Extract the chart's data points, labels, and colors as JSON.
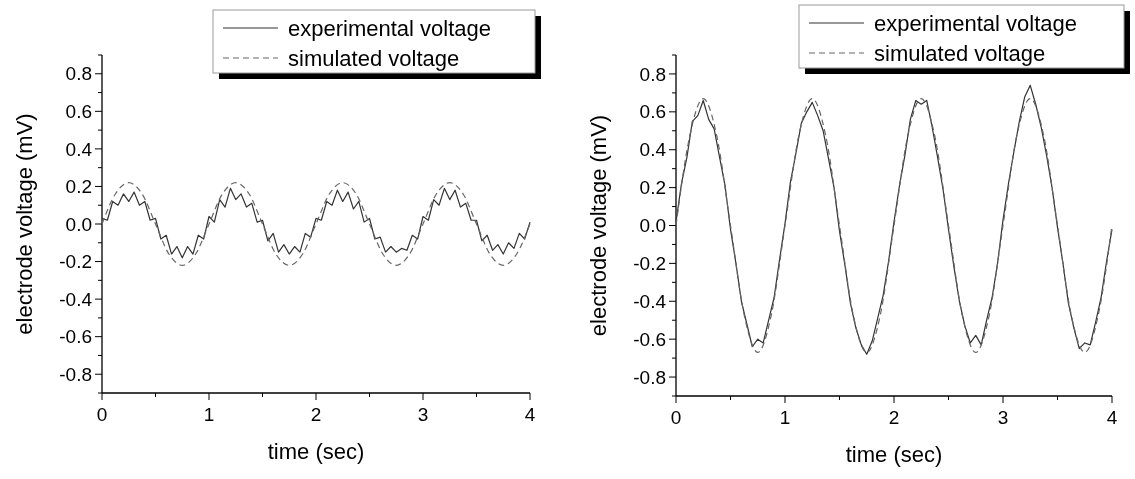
{
  "chart_data": [
    {
      "type": "line",
      "xlabel": "time (sec)",
      "ylabel": "electrode voltage (mV)",
      "xlim": [
        0,
        4
      ],
      "ylim": [
        -0.9,
        0.9
      ],
      "xticks": [
        0,
        {
          "value": 0.5,
          "label": null
        },
        1,
        {
          "value": 1.5,
          "label": null
        },
        2,
        {
          "value": 2.5,
          "label": null
        },
        3,
        {
          "value": 3.5,
          "label": null
        },
        4
      ],
      "yticks": [
        {
          "value": -0.9,
          "label": null
        },
        -0.8,
        {
          "value": -0.7,
          "label": null
        },
        -0.6,
        {
          "value": -0.5,
          "label": null
        },
        -0.4,
        {
          "value": -0.3,
          "label": null
        },
        -0.2,
        {
          "value": -0.1,
          "label": null
        },
        {
          "value": 0,
          "label": "0.0"
        },
        {
          "value": 0.1,
          "label": null
        },
        0.2,
        {
          "value": 0.3,
          "label": null
        },
        0.4,
        {
          "value": 0.5,
          "label": null
        },
        0.6,
        {
          "value": 0.7,
          "label": null
        },
        0.8,
        {
          "value": 0.9,
          "label": null
        }
      ],
      "legend": "top right",
      "grid": false,
      "series": [
        {
          "name": "experimental voltage",
          "color": "#333333",
          "line_style": "solid",
          "x": [
            0,
            0.05,
            0.1,
            0.15,
            0.2,
            0.25,
            0.3,
            0.35,
            0.4,
            0.45,
            0.5,
            0.55,
            0.6,
            0.65,
            0.7,
            0.75,
            0.8,
            0.85,
            0.9,
            0.95,
            1,
            1.05,
            1.1,
            1.15,
            1.2,
            1.25,
            1.3,
            1.35,
            1.4,
            1.45,
            1.5,
            1.55,
            1.6,
            1.65,
            1.7,
            1.75,
            1.8,
            1.85,
            1.9,
            1.95,
            2,
            2.05,
            2.1,
            2.15,
            2.2,
            2.25,
            2.3,
            2.35,
            2.4,
            2.45,
            2.5,
            2.55,
            2.6,
            2.65,
            2.7,
            2.75,
            2.8,
            2.85,
            2.9,
            2.95,
            3,
            3.05,
            3.1,
            3.15,
            3.2,
            3.25,
            3.3,
            3.35,
            3.4,
            3.45,
            3.5,
            3.55,
            3.6,
            3.65,
            3.7,
            3.75,
            3.8,
            3.85,
            3.9,
            3.95,
            4
          ],
          "values": [
            0.03,
            0.02,
            0.12,
            0.1,
            0.16,
            0.12,
            0.17,
            0.1,
            0.12,
            0.02,
            0.03,
            -0.08,
            -0.06,
            -0.16,
            -0.12,
            -0.18,
            -0.12,
            -0.16,
            -0.06,
            -0.08,
            0.04,
            0.01,
            0.13,
            0.09,
            0.19,
            0.13,
            0.16,
            0.09,
            0.11,
            0.01,
            0.02,
            -0.09,
            -0.05,
            -0.15,
            -0.11,
            -0.16,
            -0.12,
            -0.15,
            -0.05,
            -0.07,
            0.03,
            0.02,
            0.12,
            0.1,
            0.18,
            0.12,
            0.17,
            0.08,
            0.12,
            0.01,
            0.03,
            -0.08,
            -0.07,
            -0.15,
            -0.12,
            -0.15,
            -0.13,
            -0.14,
            -0.06,
            -0.08,
            0.04,
            0.02,
            0.13,
            0.1,
            0.19,
            0.13,
            0.18,
            0.09,
            0.11,
            0.02,
            0.02,
            -0.09,
            -0.06,
            -0.14,
            -0.11,
            -0.16,
            -0.1,
            -0.13,
            -0.05,
            -0.08,
            0.01
          ]
        },
        {
          "name": "simulated voltage",
          "color": "#666666",
          "line_style": "dashed",
          "x": [
            0,
            0.125,
            0.25,
            0.375,
            0.5,
            0.625,
            0.75,
            0.875,
            1,
            1.125,
            1.25,
            1.375,
            1.5,
            1.625,
            1.75,
            1.875,
            2,
            2.125,
            2.25,
            2.375,
            2.5,
            2.625,
            2.75,
            2.875,
            3,
            3.125,
            3.25,
            3.375,
            3.5,
            3.625,
            3.75,
            3.875,
            4
          ],
          "values": [
            0,
            0.16,
            0.22,
            0.16,
            0,
            -0.16,
            -0.22,
            -0.16,
            0,
            0.16,
            0.22,
            0.16,
            0,
            -0.16,
            -0.22,
            -0.16,
            0,
            0.16,
            0.22,
            0.16,
            0,
            -0.16,
            -0.22,
            -0.16,
            0,
            0.16,
            0.22,
            0.16,
            0,
            -0.16,
            -0.22,
            -0.16,
            0
          ]
        }
      ]
    },
    {
      "type": "line",
      "xlabel": "time (sec)",
      "ylabel": "electrode voltage (mV)",
      "xlim": [
        0,
        4
      ],
      "ylim": [
        -0.9,
        0.9
      ],
      "xticks": [
        0,
        {
          "value": 0.5,
          "label": null
        },
        1,
        {
          "value": 1.5,
          "label": null
        },
        2,
        {
          "value": 2.5,
          "label": null
        },
        3,
        {
          "value": 3.5,
          "label": null
        },
        4
      ],
      "yticks": [
        {
          "value": -0.9,
          "label": null
        },
        -0.8,
        {
          "value": -0.7,
          "label": null
        },
        -0.6,
        {
          "value": -0.5,
          "label": null
        },
        -0.4,
        {
          "value": -0.3,
          "label": null
        },
        -0.2,
        {
          "value": -0.1,
          "label": null
        },
        {
          "value": 0,
          "label": "0.0"
        },
        {
          "value": 0.1,
          "label": null
        },
        0.2,
        {
          "value": 0.3,
          "label": null
        },
        0.4,
        {
          "value": 0.5,
          "label": null
        },
        0.6,
        {
          "value": 0.7,
          "label": null
        },
        0.8,
        {
          "value": 0.9,
          "label": null
        }
      ],
      "legend": "top right",
      "grid": false,
      "series": [
        {
          "name": "experimental voltage",
          "color": "#333333",
          "line_style": "solid",
          "x": [
            0,
            0.05,
            0.1,
            0.15,
            0.2,
            0.25,
            0.3,
            0.35,
            0.4,
            0.45,
            0.5,
            0.55,
            0.6,
            0.65,
            0.7,
            0.75,
            0.8,
            0.85,
            0.9,
            0.95,
            1,
            1.05,
            1.1,
            1.15,
            1.2,
            1.25,
            1.3,
            1.35,
            1.4,
            1.45,
            1.5,
            1.55,
            1.6,
            1.65,
            1.7,
            1.75,
            1.8,
            1.85,
            1.9,
            1.95,
            2,
            2.05,
            2.1,
            2.15,
            2.2,
            2.25,
            2.3,
            2.35,
            2.4,
            2.45,
            2.5,
            2.55,
            2.6,
            2.65,
            2.7,
            2.75,
            2.8,
            2.85,
            2.9,
            2.95,
            3,
            3.05,
            3.1,
            3.15,
            3.2,
            3.25,
            3.3,
            3.35,
            3.4,
            3.45,
            3.5,
            3.55,
            3.6,
            3.65,
            3.7,
            3.75,
            3.8,
            3.85,
            3.9,
            3.95,
            4
          ],
          "values": [
            0.02,
            0.22,
            0.36,
            0.55,
            0.58,
            0.66,
            0.56,
            0.51,
            0.36,
            0.21,
            -0.02,
            -0.2,
            -0.4,
            -0.52,
            -0.64,
            -0.6,
            -0.62,
            -0.5,
            -0.38,
            -0.18,
            0.01,
            0.23,
            0.38,
            0.54,
            0.6,
            0.65,
            0.58,
            0.5,
            0.35,
            0.2,
            -0.03,
            -0.21,
            -0.41,
            -0.54,
            -0.63,
            -0.68,
            -0.61,
            -0.49,
            -0.37,
            -0.19,
            0.02,
            0.21,
            0.37,
            0.56,
            0.66,
            0.64,
            0.66,
            0.52,
            0.36,
            0.19,
            -0.02,
            -0.22,
            -0.4,
            -0.53,
            -0.62,
            -0.58,
            -0.63,
            -0.5,
            -0.38,
            -0.2,
            0.03,
            0.22,
            0.39,
            0.55,
            0.68,
            0.74,
            0.64,
            0.52,
            0.37,
            0.2,
            -0.01,
            -0.2,
            -0.41,
            -0.54,
            -0.65,
            -0.62,
            -0.63,
            -0.51,
            -0.38,
            -0.19,
            -0.02
          ]
        },
        {
          "name": "simulated voltage",
          "color": "#666666",
          "line_style": "dashed",
          "x": [
            0,
            0.125,
            0.25,
            0.375,
            0.5,
            0.625,
            0.75,
            0.875,
            1,
            1.125,
            1.25,
            1.375,
            1.5,
            1.625,
            1.75,
            1.875,
            2,
            2.125,
            2.25,
            2.375,
            2.5,
            2.625,
            2.75,
            2.875,
            3,
            3.125,
            3.25,
            3.375,
            3.5,
            3.625,
            3.75,
            3.875,
            4
          ],
          "values": [
            0,
            0.47,
            0.67,
            0.47,
            0,
            -0.47,
            -0.67,
            -0.47,
            0,
            0.47,
            0.67,
            0.47,
            0,
            -0.47,
            -0.67,
            -0.47,
            0,
            0.47,
            0.67,
            0.47,
            0,
            -0.47,
            -0.67,
            -0.47,
            0,
            0.47,
            0.67,
            0.47,
            0,
            -0.47,
            -0.67,
            -0.47,
            0
          ]
        }
      ]
    }
  ]
}
